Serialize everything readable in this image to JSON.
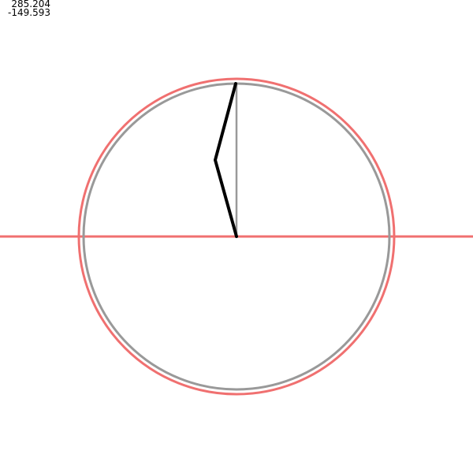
{
  "readout": {
    "value_1": "285.204",
    "value_2": "-149.593"
  },
  "colors": {
    "outer_circle": "#f07070",
    "inner_circle": "#999999",
    "horizontal_axis": "#f07070",
    "reference_line": "#999999",
    "linkage": "#000000",
    "background": "#ffffff"
  }
}
